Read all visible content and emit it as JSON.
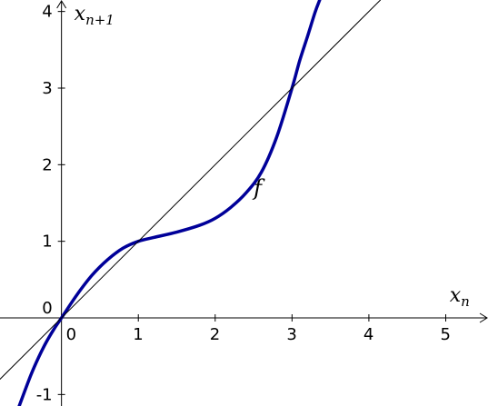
{
  "chart_data": {
    "type": "line",
    "title": "",
    "xlabel": {
      "base": "x",
      "sub": "n"
    },
    "ylabel": {
      "base": "x",
      "sub": "n+1"
    },
    "xlim": [
      -0.8,
      5.55
    ],
    "ylim": [
      -1.15,
      4.15
    ],
    "x_ticks": [
      0,
      1,
      2,
      3,
      4,
      5
    ],
    "y_ticks": [
      -1,
      0,
      1,
      2,
      3,
      4
    ],
    "x_tick_labels": [
      "0",
      "1",
      "2",
      "3",
      "4",
      "5"
    ],
    "y_tick_labels": [
      "-1",
      "0",
      "1",
      "2",
      "3",
      "4"
    ],
    "grid": false,
    "series": [
      {
        "name": "f",
        "role": "curve",
        "color": "#000099",
        "x": [
          -0.55,
          -0.4,
          -0.3,
          -0.2,
          -0.1,
          0,
          0.2,
          0.4,
          0.6,
          0.8,
          1.0,
          1.2,
          1.5,
          1.8,
          2.0,
          2.2,
          2.4,
          2.6,
          2.8,
          3.0,
          3.1,
          3.2,
          3.3,
          3.36
        ],
        "y": [
          -1.15,
          -0.75,
          -0.52,
          -0.32,
          -0.15,
          0,
          0.3,
          0.56,
          0.76,
          0.91,
          1.0,
          1.05,
          1.12,
          1.21,
          1.3,
          1.44,
          1.63,
          1.9,
          2.36,
          3.0,
          3.36,
          3.67,
          3.99,
          4.15
        ]
      },
      {
        "name": "",
        "role": "identity-line",
        "color": "#000000",
        "x": [
          -0.8,
          4.15
        ],
        "y": [
          -0.8,
          4.15
        ]
      }
    ],
    "annotations": [
      {
        "text": "f",
        "x": 2.5,
        "y": 1.6
      }
    ]
  }
}
